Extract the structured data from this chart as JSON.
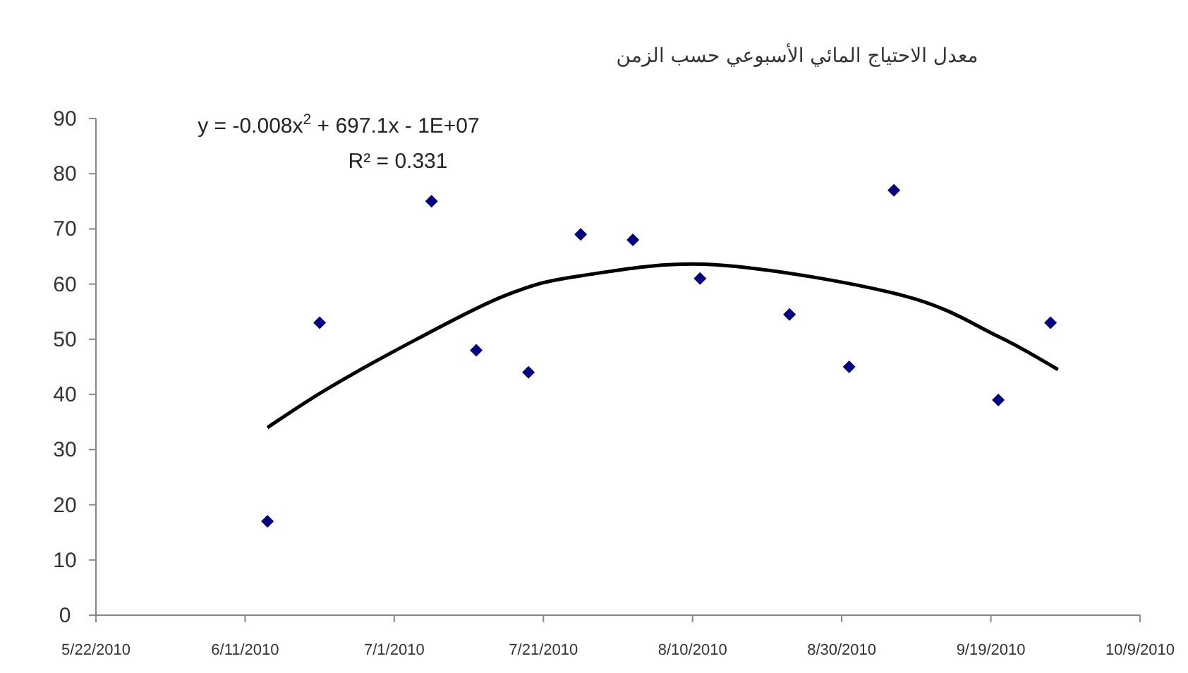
{
  "chart_data": {
    "type": "scatter",
    "title": "معدل الاحتياج المائي الأسبوعي حسب الزمن",
    "x": [
      "2010-06-14",
      "2010-06-21",
      "2010-07-06",
      "2010-07-12",
      "2010-07-19",
      "2010-07-26",
      "2010-08-02",
      "2010-08-11",
      "2010-08-23",
      "2010-08-31",
      "2010-09-06",
      "2010-09-20",
      "2010-09-27"
    ],
    "series": [
      {
        "color": "#000080",
        "marker": "diamond",
        "values": [
          17,
          53,
          75,
          48,
          44,
          69,
          68,
          61,
          54.5,
          45,
          77,
          39,
          53
        ]
      },
      {
        "type": "line",
        "color": "#000000",
        "marker": "none",
        "x": [
          "2010-06-14",
          "2010-06-22",
          "2010-07-04",
          "2010-07-16",
          "2010-07-26",
          "2010-08-13",
          "2010-09-07",
          "2010-09-20",
          "2010-09-28"
        ],
        "values": [
          34,
          41,
          50,
          58,
          61.5,
          63.5,
          58,
          50.5,
          44.5
        ]
      }
    ],
    "annotations": [
      "y = -0.008x$^{2}$ + 697.1x - 1E+07",
      "R² = 0.331"
    ],
    "xlim": [
      "2010-05-22",
      "2010-10-09"
    ],
    "xticks": [
      {
        "value": "2010-05-22",
        "label": "5/22/2010"
      },
      {
        "value": "2010-06-11",
        "label": "6/11/2010"
      },
      {
        "value": "2010-07-01",
        "label": "7/1/2010"
      },
      {
        "value": "2010-07-21",
        "label": "7/21/2010"
      },
      {
        "value": "2010-08-10",
        "label": "8/10/2010"
      },
      {
        "value": "2010-08-30",
        "label": "8/30/2010"
      },
      {
        "value": "2010-09-19",
        "label": "9/19/2010"
      },
      {
        "value": "2010-10-09",
        "label": "10/9/2010"
      }
    ],
    "ylim": [
      0,
      90
    ],
    "yticks": [
      0,
      10,
      20,
      30,
      40,
      50,
      60,
      70,
      80,
      90
    ],
    "grid": false
  }
}
